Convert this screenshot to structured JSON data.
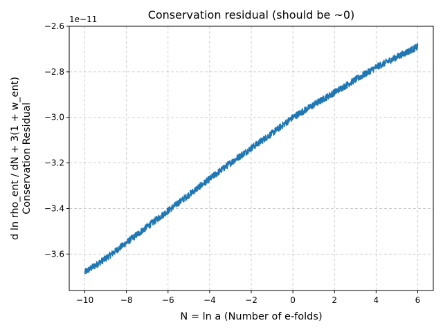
{
  "chart_data": {
    "type": "line",
    "title": "Conservation residual (should be ~0)",
    "xlabel": "N = ln a (Number of e-folds)",
    "ylabel_lines": [
      "d ln rho_ent / dN + 3(1 + w_ent)",
      "Conservation Residual"
    ],
    "y_offset_label": "1e−11",
    "xlim": [
      -10.75,
      6.75
    ],
    "ylim": [
      -3.76,
      -2.6
    ],
    "x_ticks": [
      -10,
      -8,
      -6,
      -4,
      -2,
      0,
      2,
      4,
      6
    ],
    "x_tick_labels": [
      "−10",
      "−8",
      "−6",
      "−4",
      "−2",
      "0",
      "2",
      "4",
      "6"
    ],
    "y_ticks": [
      -3.6,
      -3.4,
      -3.2,
      -3.0,
      -2.8,
      -2.6
    ],
    "y_tick_labels": [
      "−3.6",
      "−3.4",
      "−3.2",
      "−3.0",
      "−2.8",
      "−2.6"
    ],
    "grid": true,
    "series": [
      {
        "color": "#1f77b4",
        "x": [
          -10,
          -9,
          -8,
          -7,
          -6,
          -5,
          -4,
          -3,
          -2,
          -1,
          0,
          1,
          2,
          3,
          4,
          5,
          6
        ],
        "y": [
          -3.68,
          -3.62,
          -3.55,
          -3.48,
          -3.41,
          -3.34,
          -3.27,
          -3.2,
          -3.135,
          -3.07,
          -3.0,
          -2.945,
          -2.89,
          -2.835,
          -2.78,
          -2.735,
          -2.69
        ],
        "noise_amplitude": 0.03
      }
    ]
  }
}
